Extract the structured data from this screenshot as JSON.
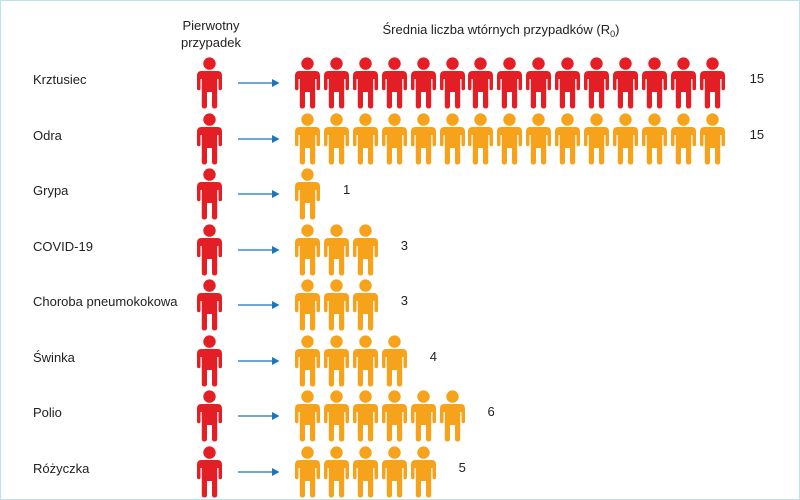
{
  "header": {
    "primary_line1": "Pierwotny",
    "primary_line2": "przypadek",
    "secondary_main": "Średnia liczba wtórnych przypadków (R",
    "secondary_sub": "0",
    "secondary_close": ")"
  },
  "colors": {
    "primary": "#e31e24",
    "secondary_orange": "#f7a21b",
    "arrow": "#1a75bb"
  },
  "icon": "person-icon",
  "chart_data": {
    "type": "pictogram",
    "categories": [
      "Krztusiec",
      "Odra",
      "Grypa",
      "COVID-19",
      "Choroba pneumokokowa",
      "Świnka",
      "Polio",
      "Różyczka"
    ],
    "values": [
      15,
      15,
      1,
      3,
      3,
      4,
      6,
      5
    ],
    "value_labels": [
      "15",
      "15",
      "1",
      "3",
      "3",
      "4",
      "6",
      "5"
    ],
    "secondary_colors": [
      "red",
      "orange",
      "orange",
      "orange",
      "orange",
      "orange",
      "orange",
      "orange"
    ]
  }
}
